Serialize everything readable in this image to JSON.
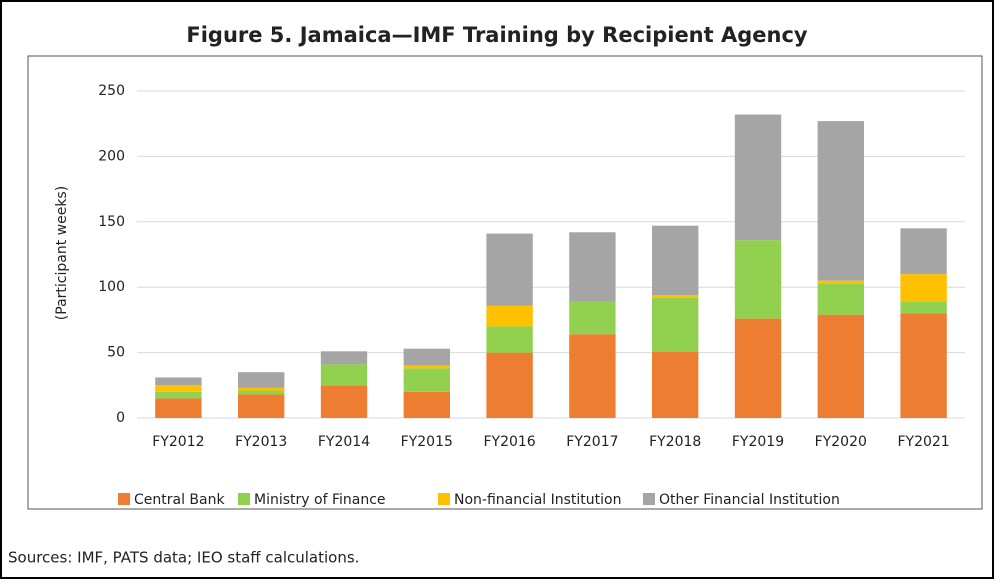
{
  "chart_data": {
    "type": "stacked_bar",
    "title": "Figure 5. Jamaica—IMF Training by Recipient Agency",
    "y_label": "(Participant weeks)",
    "source": "Sources: IMF, PATS data; IEO staff calculations.",
    "categories": [
      "FY2012",
      "FY2013",
      "FY2014",
      "FY2015",
      "FY2016",
      "FY2017",
      "FY2018",
      "FY2019",
      "FY2020",
      "FY2021"
    ],
    "series": [
      {
        "name": "Central Bank",
        "color": "#ed7d31",
        "values": [
          15,
          18,
          25,
          20,
          50,
          64,
          51,
          76,
          79,
          80
        ]
      },
      {
        "name": "Ministry of Finance",
        "color": "#92d050",
        "values": [
          5,
          3,
          16,
          18,
          20,
          25,
          41,
          60,
          24,
          9
        ]
      },
      {
        "name": "Non-financial Institution",
        "color": "#ffc000",
        "values": [
          5,
          2,
          0,
          2,
          16,
          0,
          2,
          0,
          2,
          21
        ]
      },
      {
        "name": "Other Financial Institution",
        "color": "#a5a5a5",
        "values": [
          6,
          12,
          10,
          13,
          55,
          53,
          53,
          96,
          122,
          35
        ]
      }
    ],
    "ylim": [
      0,
      250
    ],
    "yticks": [
      0,
      50,
      100,
      150,
      200,
      250
    ],
    "grid": true,
    "legend": "bottom"
  }
}
